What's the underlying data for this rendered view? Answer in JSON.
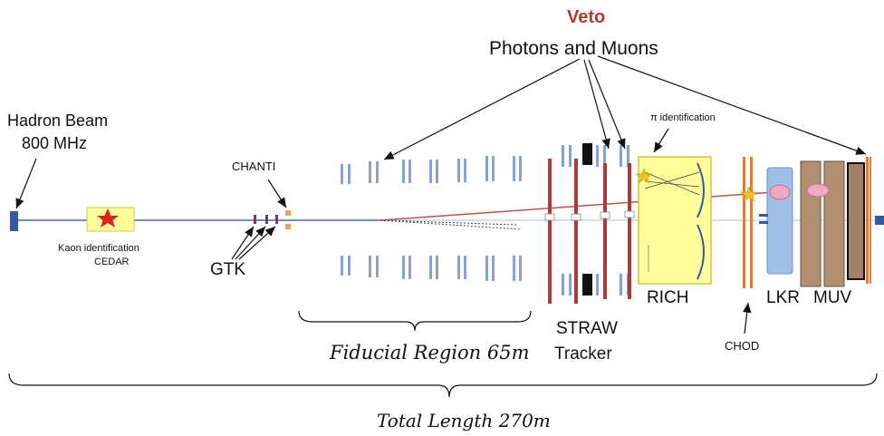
{
  "labels": {
    "veto": "Veto",
    "photons_muons": "Photons and Muons",
    "hadron_beam": "Hadron Beam",
    "beam_rate": "800  MHz",
    "kaon_identification": "Kaon identification",
    "cedar": "CEDAR",
    "gtk": "GTK",
    "chanti": "CHANTI",
    "pi_identification": "π identification",
    "fiducial_region": "Fiducial Region 65m",
    "straw": "STRAW",
    "tracker": "Tracker",
    "rich": "RICH",
    "lkr": "LKR",
    "muv": "MUV",
    "chod": "CHOD",
    "total_length": "Total Length 270m"
  },
  "colors": {
    "veto_text": "#b03a2e",
    "beam_line": "#5b7fbf",
    "decay_line": "#c0504d",
    "straw_chamber": "#b03a3a",
    "veto_stripe": "#7f96cc",
    "rich_vessel": "#ffff99",
    "lkr_block": "#9fbfe8",
    "muv_block": "#a0806a",
    "chod_plane": "#e07b39",
    "star": "#e02020"
  }
}
